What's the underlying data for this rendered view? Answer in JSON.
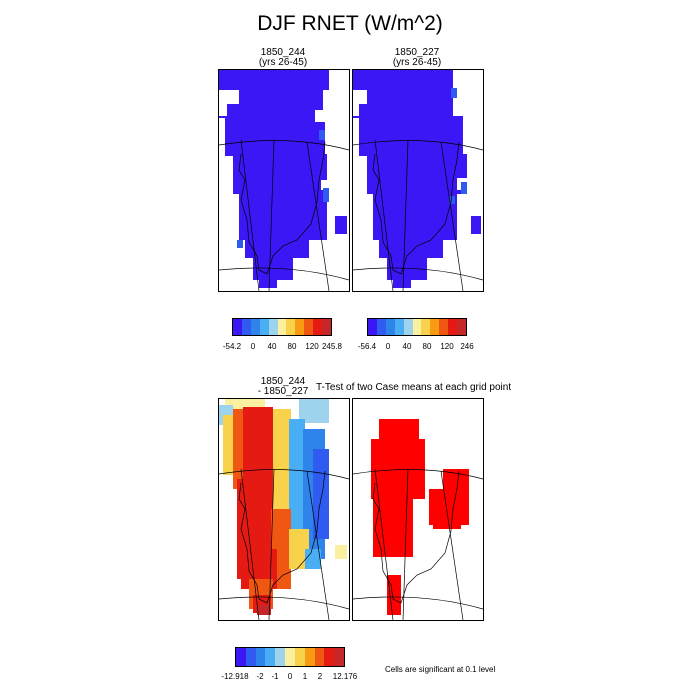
{
  "title": "DJF RNET (W/m^2)",
  "panels": {
    "p1": {
      "line1": "1850_244",
      "line2": "(yrs 26-45)"
    },
    "p2": {
      "line1": "1850_227",
      "line2": "(yrs 26-45)"
    },
    "p3": {
      "line1": "1850_244",
      "line2": "- 1850_227"
    },
    "p4": {
      "title": "T-Test of two Case means at each grid point"
    }
  },
  "colorbars": {
    "cb1": {
      "colors": [
        "#3a17f4",
        "#2f5bf0",
        "#2f84ec",
        "#4aaef4",
        "#9ed3ee",
        "#fbf0a0",
        "#f8d24b",
        "#f79c12",
        "#ef5712",
        "#e51a12",
        "#c6282a"
      ],
      "labels": [
        "-54.2",
        "0",
        "40",
        "80",
        "120",
        "245.8"
      ]
    },
    "cb2": {
      "colors": [
        "#3a17f4",
        "#2f5bf0",
        "#2f84ec",
        "#4aaef4",
        "#9ed3ee",
        "#fbf0a0",
        "#f8d24b",
        "#f79c12",
        "#ef5712",
        "#e51a12",
        "#c6282a"
      ],
      "labels": [
        "-56.4",
        "0",
        "40",
        "80",
        "120",
        "246"
      ]
    },
    "cb3": {
      "colors": [
        "#3a17f4",
        "#2f5bf0",
        "#2f84ec",
        "#4aaef4",
        "#9ed3ee",
        "#fbf0a0",
        "#f8d24b",
        "#f79c12",
        "#ef5712",
        "#e51a12",
        "#c6282a"
      ],
      "labels": [
        "-12.918",
        "-2",
        "-1",
        "0",
        "1",
        "2",
        "12.176"
      ]
    }
  },
  "note": "Cells are significant at 0.1 level",
  "colors": {
    "significant": "#ff0000",
    "blue_field": "#3a17f4"
  }
}
